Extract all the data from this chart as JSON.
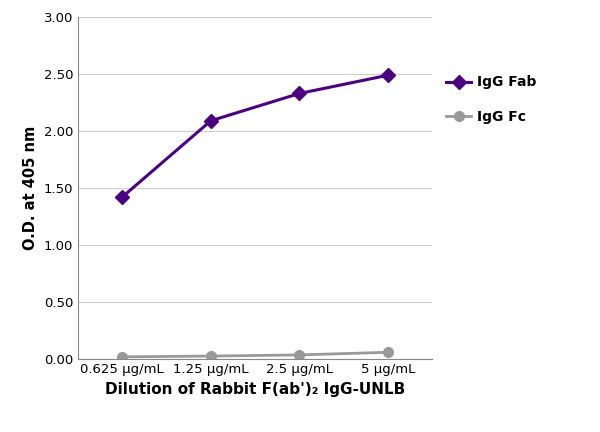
{
  "x_labels": [
    "0.625 μg/mL",
    "1.25 μg/mL",
    "2.5 μg/mL",
    "5 μg/mL"
  ],
  "x_positions": [
    0,
    1,
    2,
    3
  ],
  "series": [
    {
      "name": "IgG Fab",
      "values": [
        1.42,
        2.09,
        2.33,
        2.49
      ],
      "color": "#4B0082",
      "marker": "D",
      "marker_color": "#4B0082",
      "linewidth": 2.2,
      "markersize": 7
    },
    {
      "name": "IgG Fc",
      "values": [
        0.015,
        0.022,
        0.032,
        0.055
      ],
      "color": "#999999",
      "marker": "o",
      "marker_color": "#999999",
      "linewidth": 2.0,
      "markersize": 7
    }
  ],
  "ylabel": "O.D. at 405 nm",
  "xlabel_display": "Dilution of Rabbit F(ab')₂ IgG-UNLB",
  "ylim": [
    0.0,
    3.0
  ],
  "yticks": [
    0.0,
    0.5,
    1.0,
    1.5,
    2.0,
    2.5,
    3.0
  ],
  "ytick_labels": [
    "0.00",
    "0.50",
    "1.00",
    "1.50",
    "2.00",
    "2.50",
    "3.00"
  ],
  "grid_color": "#cccccc",
  "background_color": "#ffffff",
  "legend_fontsize": 10,
  "tick_fontsize": 9.5,
  "xlabel_fontsize": 11,
  "ylabel_fontsize": 10.5
}
